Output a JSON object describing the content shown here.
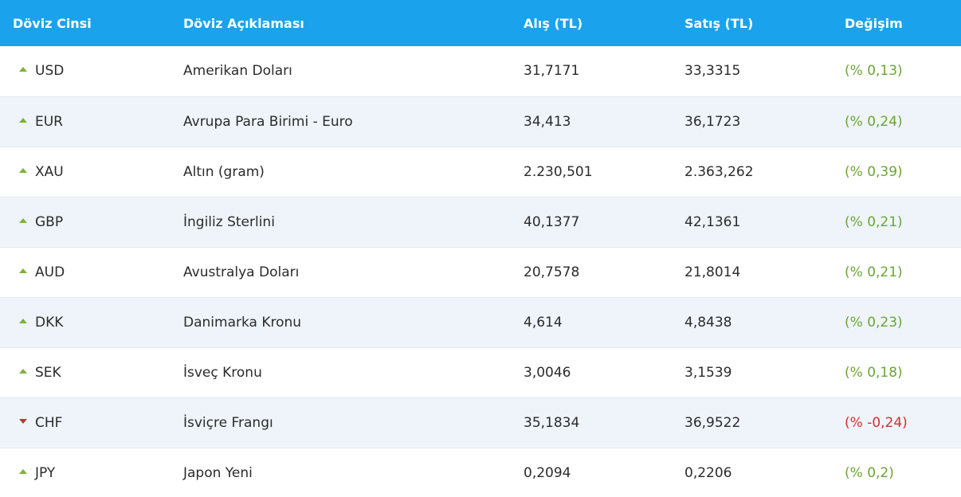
{
  "header": {
    "code": "Döviz Cinsi",
    "desc": "Döviz Açıklaması",
    "buy": "Alış (TL)",
    "sell": "Satış (TL)",
    "change": "Değişim"
  },
  "colors": {
    "header_bg": "#1aa3ec",
    "up": "#6aa534",
    "down": "#d32f2f",
    "row_alt": "#eef4fa"
  },
  "rows": [
    {
      "code": "USD",
      "desc": "Amerikan Doları",
      "buy": "31,7171",
      "sell": "33,3315",
      "change": "(% 0,13)",
      "dir": "up"
    },
    {
      "code": "EUR",
      "desc": "Avrupa Para Birimi - Euro",
      "buy": "34,413",
      "sell": "36,1723",
      "change": "(% 0,24)",
      "dir": "up"
    },
    {
      "code": "XAU",
      "desc": "Altın (gram)",
      "buy": "2.230,501",
      "sell": "2.363,262",
      "change": "(% 0,39)",
      "dir": "up"
    },
    {
      "code": "GBP",
      "desc": "İngiliz Sterlini",
      "buy": "40,1377",
      "sell": "42,1361",
      "change": "(% 0,21)",
      "dir": "up"
    },
    {
      "code": "AUD",
      "desc": "Avustralya Doları",
      "buy": "20,7578",
      "sell": "21,8014",
      "change": "(% 0,21)",
      "dir": "up"
    },
    {
      "code": "DKK",
      "desc": "Danimarka Kronu",
      "buy": "4,614",
      "sell": "4,8438",
      "change": "(% 0,23)",
      "dir": "up"
    },
    {
      "code": "SEK",
      "desc": "İsveç Kronu",
      "buy": "3,0046",
      "sell": "3,1539",
      "change": "(% 0,18)",
      "dir": "up"
    },
    {
      "code": "CHF",
      "desc": "İsviçre Frangı",
      "buy": "35,1834",
      "sell": "36,9522",
      "change": "(% -0,24)",
      "dir": "down"
    },
    {
      "code": "JPY",
      "desc": "Japon Yeni",
      "buy": "0,2094",
      "sell": "0,2206",
      "change": "(% 0,2)",
      "dir": "up"
    }
  ]
}
